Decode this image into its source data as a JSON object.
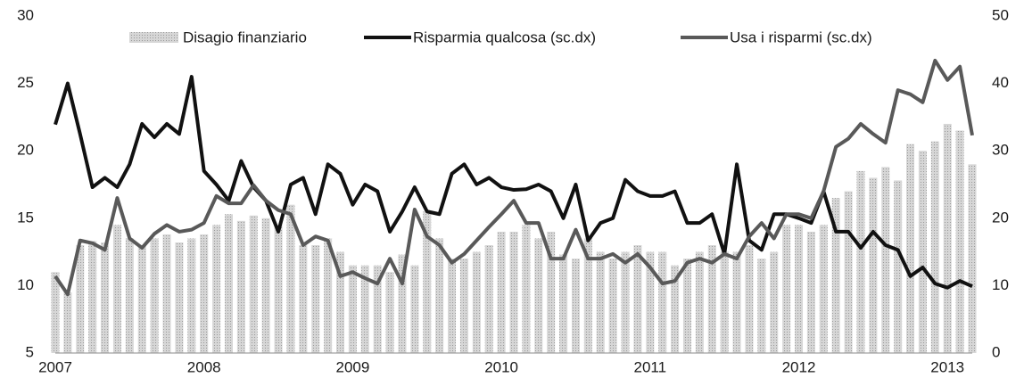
{
  "chart_data": {
    "type": "bar",
    "categories": [
      "2007",
      null,
      null,
      null,
      null,
      null,
      null,
      null,
      null,
      null,
      null,
      null,
      "2008",
      null,
      null,
      null,
      null,
      null,
      null,
      null,
      null,
      null,
      null,
      null,
      "2009",
      null,
      null,
      null,
      null,
      null,
      null,
      null,
      null,
      null,
      null,
      null,
      "2010",
      null,
      null,
      null,
      null,
      null,
      null,
      null,
      null,
      null,
      null,
      null,
      "2011",
      null,
      null,
      null,
      null,
      null,
      null,
      null,
      null,
      null,
      null,
      null,
      "2012",
      null,
      null,
      null,
      null,
      null,
      null,
      null,
      null,
      null,
      null,
      null,
      "2013",
      null,
      null
    ],
    "series": [
      {
        "name": "Disagio finanziario",
        "color": "#c4c4c4",
        "values": [
          11,
          9.5,
          13,
          13.3,
          13.2,
          14.5,
          13.5,
          13,
          13.5,
          13.8,
          13.2,
          13.5,
          13.8,
          14.5,
          15.3,
          14.8,
          15.2,
          15,
          14.5,
          16,
          13,
          13,
          13.5,
          12.5,
          11.5,
          11.5,
          11.5,
          11,
          12.3,
          11.5,
          15.5,
          13.5,
          12,
          12,
          12.5,
          13,
          14,
          14,
          14.5,
          13.5,
          14,
          12.3,
          12,
          13.5,
          12.5,
          12,
          12.5,
          13,
          12.5,
          12.5,
          11.5,
          12,
          12.5,
          13,
          12.5,
          12.5,
          13,
          12,
          12.5,
          14.5,
          14.5,
          14,
          14.5,
          16.5,
          17,
          18.5,
          18,
          18.8,
          17.8,
          20.5,
          20,
          20.7,
          22,
          21.5,
          19
        ]
      },
      {
        "name": "Risparmia qualcosa (sc.dx)",
        "color": "#111111",
        "type": "line",
        "axis": "y2",
        "values": [
          33.9,
          40,
          32.5,
          24.6,
          26,
          24.6,
          28,
          34,
          32,
          34,
          32.5,
          41,
          27,
          25,
          22.6,
          28.5,
          24.6,
          22.6,
          18,
          25,
          26,
          20.6,
          28,
          26.6,
          22,
          25,
          24,
          18,
          21,
          24.6,
          21,
          20.6,
          26.6,
          28,
          25,
          26,
          24.6,
          24.2,
          24.3,
          25,
          24,
          20,
          25,
          16.7,
          19.3,
          20,
          25.7,
          24,
          23.3,
          23.3,
          24,
          19.3,
          19.3,
          20.6,
          14.7,
          28,
          16.7,
          15.3,
          20.6,
          20.6,
          20,
          19.3,
          24,
          18,
          18,
          15.6,
          18,
          16,
          15.3,
          11.4,
          12.7,
          10.3,
          9.7,
          10.7,
          9.9
        ]
      },
      {
        "name": "Usa i risparmi (sc.dx)",
        "color": "#595959",
        "type": "line",
        "axis": "y2",
        "values": [
          11.4,
          8.7,
          16.7,
          16.3,
          15.3,
          23,
          17,
          15.6,
          17.7,
          19,
          18,
          18.3,
          19.3,
          23.3,
          22.2,
          22.2,
          24.9,
          22.6,
          21.2,
          20.6,
          16,
          17.3,
          16.7,
          11.4,
          12,
          11.1,
          10.3,
          14,
          10.3,
          21.3,
          17.3,
          16,
          13.4,
          14.7,
          16.7,
          18.7,
          20.6,
          22.6,
          19.3,
          19.3,
          14,
          14,
          18.3,
          14,
          14,
          14.7,
          13.4,
          14.7,
          12.7,
          10.3,
          10.7,
          13.4,
          14,
          13.4,
          14.7,
          14,
          17.3,
          19.3,
          17,
          20.6,
          20.6,
          20,
          24,
          30.6,
          31.8,
          34,
          32.5,
          31.2,
          39,
          38.4,
          37.2,
          43.4,
          40.5,
          42.5,
          32.3
        ]
      }
    ],
    "ylim": [
      5,
      30
    ],
    "yticks": [
      5,
      10,
      15,
      20,
      25,
      30
    ],
    "y2lim": [
      0,
      50
    ],
    "y2ticks": [
      0,
      10,
      20,
      30,
      40,
      50
    ],
    "grid": false,
    "legend": "top"
  }
}
